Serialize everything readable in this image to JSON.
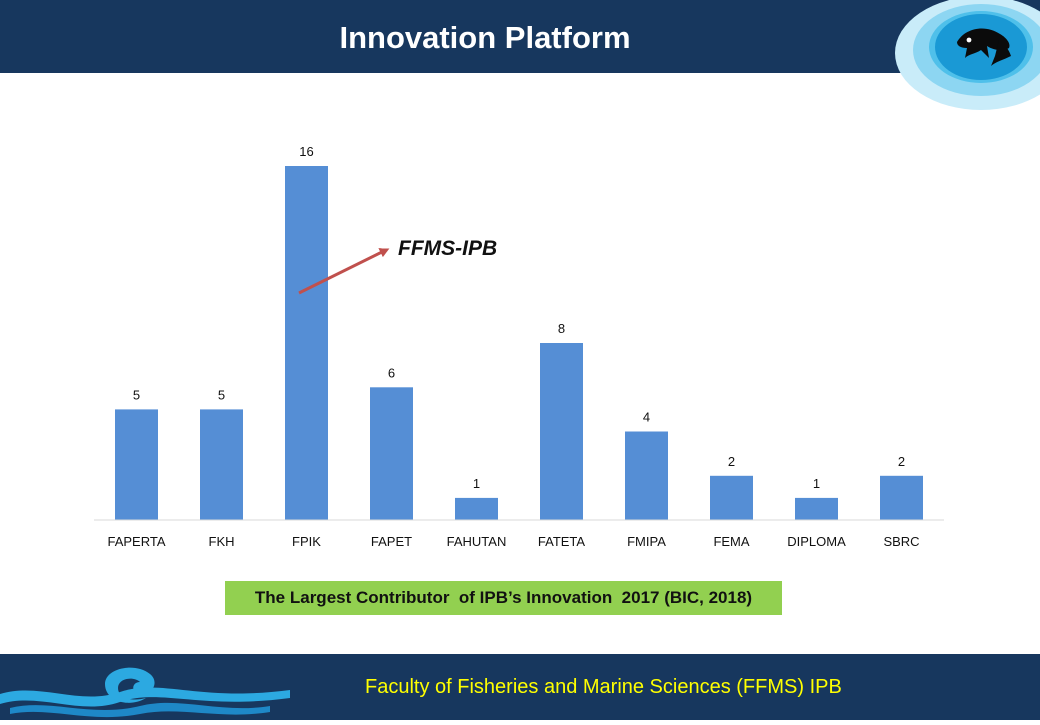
{
  "header": {
    "title": "Innovation Platform"
  },
  "footer": {
    "text": "Faculty of Fisheries and Marine Sciences (FFMS) IPB"
  },
  "caption": "The Largest Contributor  of IPB’s Innovation  2017 (BIC, 2018)",
  "annotation": {
    "label": "FFMS-IPB",
    "points_to": "FPIK"
  },
  "icons": {
    "header_logo": "fish-logo-icon",
    "footer_logo": "wave-logo-icon"
  },
  "colors": {
    "header_bg": "#17375e",
    "bar": "#558ed5",
    "caption_bg": "#92d050",
    "footer_text": "#ffff00",
    "arrow": "#c0504d"
  },
  "chart_data": {
    "type": "bar",
    "categories": [
      "FAPERTA",
      "FKH",
      "FPIK",
      "FAPET",
      "FAHUTAN",
      "FATETA",
      "FMIPA",
      "FEMA",
      "DIPLOMA",
      "SBRC"
    ],
    "values": [
      5,
      5,
      16,
      6,
      1,
      8,
      4,
      2,
      1,
      2
    ],
    "ylim": [
      0,
      16
    ],
    "grid": false,
    "legend": "none"
  }
}
